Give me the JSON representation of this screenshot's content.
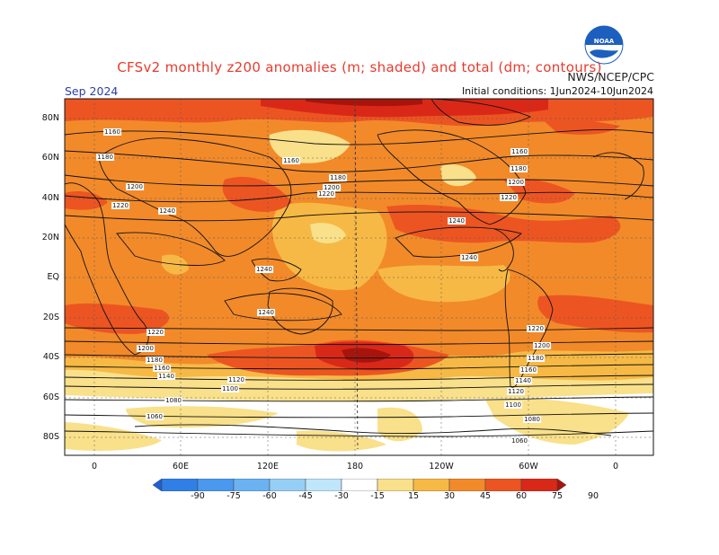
{
  "title": "CFSv2 monthly z200 anomalies (m; shaded) and total (dm; contours)",
  "credit": "NWS/NCEP/CPC",
  "month_label": "Sep 2024",
  "initial_conditions": "Initial conditions: 1Jun2024-10Jun2024",
  "logo_text": "NOAA",
  "lat_labels": [
    "80N",
    "60N",
    "40N",
    "20N",
    "EQ",
    "20S",
    "40S",
    "60S",
    "80S"
  ],
  "lon_labels": [
    "0",
    "60E",
    "120E",
    "180",
    "120W",
    "60W",
    "0"
  ],
  "colorbar": {
    "labels": [
      "-90",
      "-75",
      "-60",
      "-45",
      "-30",
      "-15",
      "15",
      "30",
      "45",
      "60",
      "75",
      "90"
    ],
    "colors": [
      "#1f5fd6",
      "#2f7fe6",
      "#4a98ef",
      "#6bb2f2",
      "#96cff5",
      "#bfe6fb",
      "#ffffff",
      "#f9e08a",
      "#f7b945",
      "#f28a2a",
      "#ec5522",
      "#d92818",
      "#a8140c"
    ]
  },
  "contour_labels": [
    "1160",
    "1180",
    "1200",
    "1220",
    "1240",
    "1160",
    "1180",
    "1200",
    "1220",
    "1160",
    "1180",
    "1200",
    "1220",
    "1240",
    "1240",
    "1240",
    "1240",
    "1220",
    "1200",
    "1180",
    "1160",
    "1140",
    "1120",
    "1100",
    "1080",
    "1060",
    "1220",
    "1200",
    "1180",
    "1160",
    "1140",
    "1120",
    "1100",
    "1080",
    "1060"
  ],
  "colors": {
    "title": "#e63b2e",
    "month": "#2a3fa8",
    "noaa_blue": "#1d5fbf"
  }
}
